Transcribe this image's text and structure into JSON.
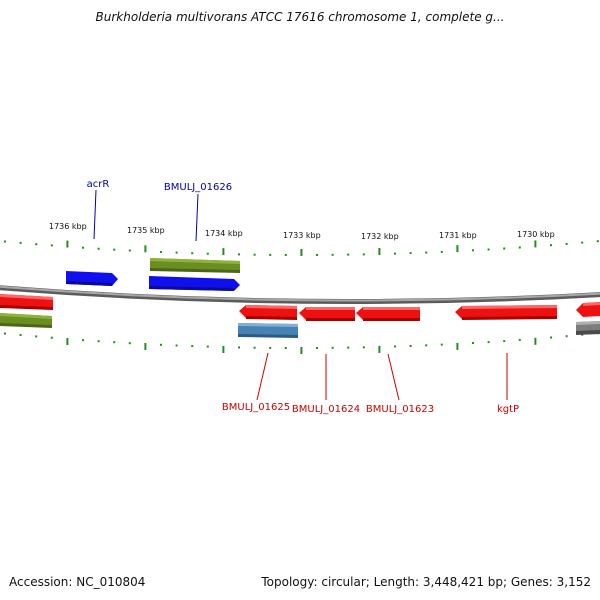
{
  "title": "Burkholderia multivorans ATCC 17616 chromosome 1, complete g...",
  "footer": {
    "accession": "Accession: NC_010804",
    "summary": "Topology: circular; Length: 3,448,421 bp; Genes: 3,152"
  },
  "colors": {
    "backbone": "#7d7d7d",
    "tick": "#228b22",
    "forward_gene": "#1010ee",
    "reverse_gene": "#ee1111",
    "forward_cluster": "#6b8e23",
    "reverse_cluster": "#6b8e23",
    "rna_or_other": "#4682b4",
    "gray_feature": "#7d7d7d",
    "forward_label": "#0000aa",
    "reverse_label": "#cc0000"
  },
  "ticks": {
    "labels": [
      "1736 kbp",
      "1735 kbp",
      "1734 kbp",
      "1733 kbp",
      "1732 kbp",
      "1731 kbp",
      "1730 kbp"
    ]
  },
  "genes_forward": [
    {
      "label": "acrR",
      "strand": "+"
    },
    {
      "label": "BMULJ_01626",
      "strand": "+"
    }
  ],
  "genes_reverse": [
    {
      "label": "BMULJ_01625",
      "strand": "-"
    },
    {
      "label": "BMULJ_01624",
      "strand": "-"
    },
    {
      "label": "BMULJ_01623",
      "strand": "-"
    },
    {
      "label": "kgtP",
      "strand": "-"
    }
  ]
}
